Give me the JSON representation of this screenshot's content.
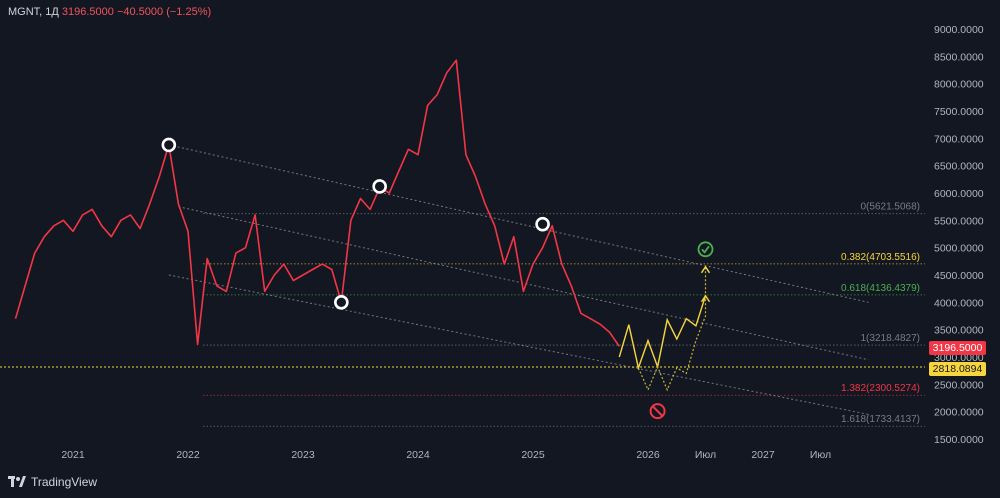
{
  "header": {
    "symbol": "MGNT, 1Д",
    "last": "3196.5000",
    "change": "−40.5000 (−1.25%)"
  },
  "brand": {
    "name": "TradingView"
  },
  "price_tags": {
    "last_price": "3196.5000",
    "level_price": "2818.0894"
  },
  "chart_data": {
    "type": "line",
    "y_axis": {
      "ticks": [
        "9000.0000",
        "8500.0000",
        "8000.0000",
        "7500.0000",
        "7000.0000",
        "6500.0000",
        "6000.0000",
        "5500.0000",
        "5000.0000",
        "4500.0000",
        "4000.0000",
        "3500.0000",
        "3000.0000",
        "2500.0000",
        "2000.0000",
        "1500.0000"
      ],
      "range": [
        1420,
        9120
      ]
    },
    "x_axis": {
      "ticks": [
        "2021",
        "2022",
        "2023",
        "2024",
        "2025",
        "2026",
        "Июл",
        "2027",
        "Июл"
      ],
      "range": [
        "2020-07",
        "2028-01"
      ]
    },
    "series": [
      {
        "values": [
          [
            "2020-07",
            3700
          ],
          [
            "2020-08",
            4300
          ],
          [
            "2020-09",
            4900
          ],
          [
            "2020-10",
            5200
          ],
          [
            "2020-11",
            5400
          ],
          [
            "2020-12",
            5500
          ],
          [
            "2021-01",
            5300
          ],
          [
            "2021-02",
            5600
          ],
          [
            "2021-03",
            5700
          ],
          [
            "2021-04",
            5400
          ],
          [
            "2021-05",
            5200
          ],
          [
            "2021-06",
            5500
          ],
          [
            "2021-07",
            5600
          ],
          [
            "2021-08",
            5350
          ],
          [
            "2021-09",
            5800
          ],
          [
            "2021-10",
            6300
          ],
          [
            "2021-11",
            6880
          ],
          [
            "2021-12",
            5800
          ],
          [
            "2022-01",
            5300
          ],
          [
            "2022-02",
            3230
          ],
          [
            "2022-03",
            4800
          ],
          [
            "2022-04",
            4300
          ],
          [
            "2022-05",
            4200
          ],
          [
            "2022-06",
            4900
          ],
          [
            "2022-07",
            5000
          ],
          [
            "2022-08",
            5600
          ],
          [
            "2022-09",
            4200
          ],
          [
            "2022-10",
            4500
          ],
          [
            "2022-11",
            4700
          ],
          [
            "2022-12",
            4400
          ],
          [
            "2023-01",
            4500
          ],
          [
            "2023-02",
            4600
          ],
          [
            "2023-03",
            4700
          ],
          [
            "2023-04",
            4600
          ],
          [
            "2023-05",
            4000
          ],
          [
            "2023-06",
            5500
          ],
          [
            "2023-07",
            5900
          ],
          [
            "2023-08",
            5700
          ],
          [
            "2023-09",
            6100
          ],
          [
            "2023-10",
            6000
          ],
          [
            "2023-11",
            6400
          ],
          [
            "2023-12",
            6800
          ],
          [
            "2024-01",
            6700
          ],
          [
            "2024-02",
            7600
          ],
          [
            "2024-03",
            7800
          ],
          [
            "2024-04",
            8200
          ],
          [
            "2024-05",
            8430
          ],
          [
            "2024-06",
            6700
          ],
          [
            "2024-07",
            6300
          ],
          [
            "2024-08",
            5800
          ],
          [
            "2024-09",
            5400
          ],
          [
            "2024-10",
            4700
          ],
          [
            "2024-11",
            5200
          ],
          [
            "2024-12",
            4200
          ],
          [
            "2025-01",
            4700
          ],
          [
            "2025-02",
            5000
          ],
          [
            "2025-03",
            5400
          ],
          [
            "2025-04",
            4700
          ],
          [
            "2025-05",
            4300
          ],
          [
            "2025-06",
            3800
          ],
          [
            "2025-07",
            3700
          ],
          [
            "2025-08",
            3600
          ],
          [
            "2025-09",
            3450
          ],
          [
            "2025-10",
            3196.5
          ]
        ]
      }
    ],
    "fib_levels": [
      {
        "label": "0(5621.5068)",
        "value": 5621.5068,
        "color": "#787b86"
      },
      {
        "label": "0.382(4703.5516)",
        "value": 4703.5516,
        "color": "#f7d53c"
      },
      {
        "label": "0.618(4136.4379)",
        "value": 4136.4379,
        "color": "#4caf50"
      },
      {
        "label": "1(3218.4827)",
        "value": 3218.4827,
        "color": "#787b86"
      },
      {
        "label": "1.382(2300.5274)",
        "value": 2300.5274,
        "color": "#f23645"
      },
      {
        "label": "1.618(1733.4137)",
        "value": 1733.4137,
        "color": "#787b86"
      }
    ],
    "horizontal_level": {
      "value": 2818.0894,
      "color": "#f7d53c"
    },
    "trend_channels": [
      {
        "from": [
          "2021-11",
          6880
        ],
        "to": [
          "2027-12",
          4000
        ]
      },
      {
        "from": [
          "2021-12",
          5750
        ],
        "to": [
          "2027-12",
          2950
        ]
      },
      {
        "from": [
          "2021-11",
          4500
        ],
        "to": [
          "2027-12",
          1950
        ]
      }
    ],
    "circle_markers": [
      [
        "2021-11",
        6880
      ],
      [
        "2023-05",
        4000
      ],
      [
        "2023-09",
        6120
      ],
      [
        "2025-02",
        5430
      ]
    ],
    "projection_main": [
      [
        "2025-10",
        3000
      ],
      [
        "2025-11",
        3590
      ],
      [
        "2025-12",
        2800
      ],
      [
        "2026-01",
        3300
      ],
      [
        "2026-02",
        2820
      ],
      [
        "2026-03",
        3680
      ],
      [
        "2026-04",
        3330
      ],
      [
        "2026-05",
        3700
      ],
      [
        "2026-06",
        3570
      ],
      [
        "2026-07",
        4120
      ]
    ],
    "projection_alt": [
      [
        "2025-12",
        2800
      ],
      [
        "2026-01",
        2400
      ],
      [
        "2026-02",
        2820
      ],
      [
        "2026-03",
        2400
      ],
      [
        "2026-04",
        2800
      ],
      [
        "2026-05",
        2700
      ],
      [
        "2026-06",
        3300
      ],
      [
        "2026-07",
        3750
      ],
      [
        "2026-07",
        4650
      ]
    ],
    "ok_marker": [
      "2026-07",
      4970
    ],
    "no_marker": [
      "2026-02",
      2010
    ]
  }
}
